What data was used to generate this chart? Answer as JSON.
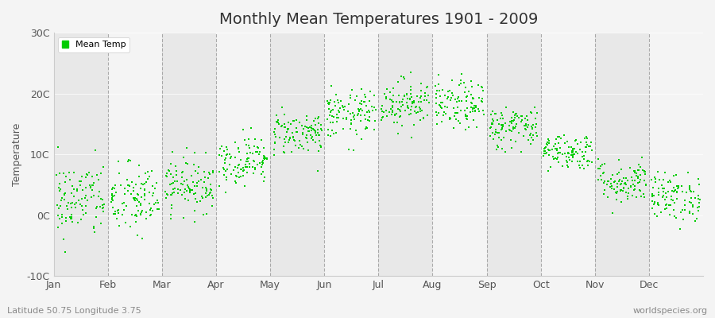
{
  "title": "Monthly Mean Temperatures 1901 - 2009",
  "ylabel": "Temperature",
  "subtitle_left": "Latitude 50.75 Longitude 3.75",
  "subtitle_right": "worldspecies.org",
  "legend_label": "Mean Temp",
  "ylim": [
    -10,
    30
  ],
  "yticks": [
    -10,
    0,
    10,
    20,
    30
  ],
  "ytick_labels": [
    "-10C",
    "0C",
    "10C",
    "20C",
    "30C"
  ],
  "months": [
    "Jan",
    "Feb",
    "Mar",
    "Apr",
    "May",
    "Jun",
    "Jul",
    "Aug",
    "Sep",
    "Oct",
    "Nov",
    "Dec"
  ],
  "monthly_means": [
    2.5,
    2.5,
    5.0,
    9.0,
    13.5,
    16.5,
    18.5,
    18.0,
    14.5,
    10.5,
    5.5,
    3.0
  ],
  "monthly_stds": [
    3.2,
    3.0,
    2.2,
    2.0,
    1.8,
    2.0,
    2.0,
    2.0,
    1.8,
    1.5,
    1.8,
    2.0
  ],
  "n_years": 109,
  "dot_color": "#00cc00",
  "marker": "s",
  "marker_size": 2,
  "bg_color": "#f4f4f4",
  "plot_bg_light": "#f4f4f4",
  "plot_bg_dark": "#e8e8e8",
  "grid_color": "#999999",
  "title_fontsize": 14,
  "label_fontsize": 9,
  "tick_fontsize": 9,
  "watermark_fontsize": 8
}
